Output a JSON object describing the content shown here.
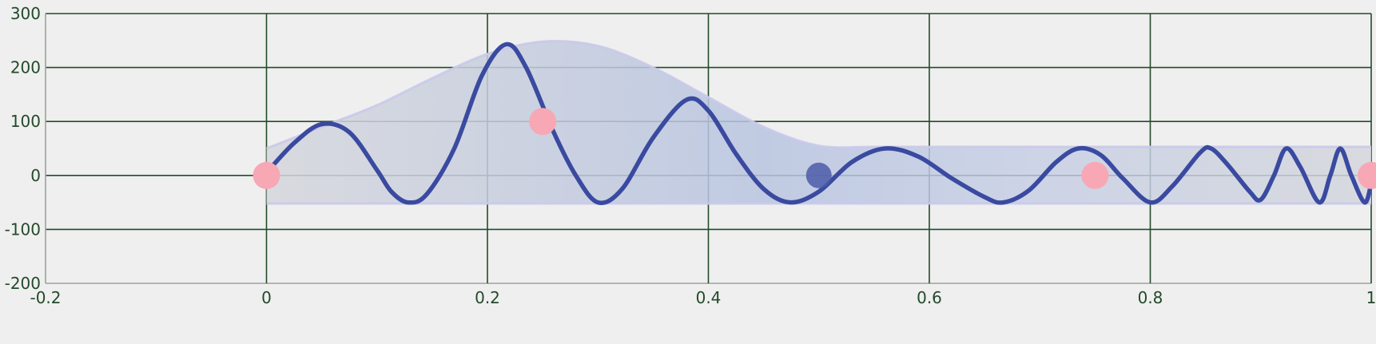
{
  "chart_data": {
    "type": "line",
    "title": "",
    "xlabel": "",
    "ylabel": "",
    "xlim": [
      -0.2,
      1.0
    ],
    "ylim": [
      -200,
      300
    ],
    "x_ticks": [
      {
        "value": -0.2,
        "label": "-0.2"
      },
      {
        "value": 0,
        "label": "0"
      },
      {
        "value": 0.2,
        "label": "0.2"
      },
      {
        "value": 0.4,
        "label": "0.4"
      },
      {
        "value": 0.6,
        "label": "0.6"
      },
      {
        "value": 0.8,
        "label": "0.8"
      },
      {
        "value": 1.0,
        "label": "1"
      }
    ],
    "y_ticks": [
      {
        "value": 300,
        "label": "300"
      },
      {
        "value": 200,
        "label": "200"
      },
      {
        "value": 100,
        "label": "100"
      },
      {
        "value": 0,
        "label": "0"
      },
      {
        "value": -100,
        "label": "-100"
      },
      {
        "value": -200,
        "label": "-200"
      }
    ],
    "grid": true,
    "colors": {
      "curve": "#3a4aa0",
      "band_fill": "#b8c4e0",
      "band_edge": "#c9c9ea",
      "point_pink": "#f7a8b4",
      "point_blue": "#4c5aa8",
      "grid": "#234a2a",
      "background": "#efefef"
    },
    "series": [
      {
        "points": [
          [
            0.0,
            5
          ],
          [
            0.025,
            60
          ],
          [
            0.05,
            95
          ],
          [
            0.075,
            80
          ],
          [
            0.1,
            10
          ],
          [
            0.113,
            -30
          ],
          [
            0.128,
            -50
          ],
          [
            0.145,
            -35
          ],
          [
            0.17,
            50
          ],
          [
            0.195,
            185
          ],
          [
            0.217,
            243
          ],
          [
            0.235,
            200
          ],
          [
            0.26,
            80
          ],
          [
            0.28,
            0
          ],
          [
            0.3,
            -50
          ],
          [
            0.322,
            -25
          ],
          [
            0.35,
            70
          ],
          [
            0.38,
            140
          ],
          [
            0.4,
            120
          ],
          [
            0.425,
            40
          ],
          [
            0.45,
            -25
          ],
          [
            0.474,
            -50
          ],
          [
            0.5,
            -30
          ],
          [
            0.53,
            25
          ],
          [
            0.56,
            50
          ],
          [
            0.59,
            35
          ],
          [
            0.62,
            -5
          ],
          [
            0.65,
            -40
          ],
          [
            0.667,
            -50
          ],
          [
            0.69,
            -28
          ],
          [
            0.715,
            25
          ],
          [
            0.735,
            50
          ],
          [
            0.755,
            38
          ],
          [
            0.775,
            -5
          ],
          [
            0.8,
            -50
          ],
          [
            0.82,
            -20
          ],
          [
            0.845,
            42
          ],
          [
            0.855,
            50
          ],
          [
            0.87,
            20
          ],
          [
            0.89,
            -30
          ],
          [
            0.9,
            -45
          ],
          [
            0.912,
            0
          ],
          [
            0.923,
            50
          ],
          [
            0.936,
            15
          ],
          [
            0.953,
            -50
          ],
          [
            0.963,
            0
          ],
          [
            0.972,
            50
          ],
          [
            0.982,
            0
          ],
          [
            0.994,
            -50
          ],
          [
            1.0,
            -15
          ]
        ]
      }
    ],
    "band": {
      "upper": [
        [
          0.0,
          50
        ],
        [
          0.05,
          90
        ],
        [
          0.1,
          130
        ],
        [
          0.15,
          180
        ],
        [
          0.2,
          225
        ],
        [
          0.25,
          248
        ],
        [
          0.3,
          240
        ],
        [
          0.35,
          200
        ],
        [
          0.4,
          145
        ],
        [
          0.45,
          90
        ],
        [
          0.5,
          55
        ],
        [
          0.55,
          53
        ],
        [
          0.6,
          53
        ],
        [
          0.7,
          53
        ],
        [
          0.8,
          53
        ],
        [
          0.9,
          53
        ],
        [
          1.0,
          53
        ]
      ],
      "lower": [
        [
          0.0,
          -52
        ],
        [
          0.2,
          -52
        ],
        [
          0.4,
          -52
        ],
        [
          0.6,
          -52
        ],
        [
          0.8,
          -52
        ],
        [
          1.0,
          -52
        ]
      ]
    },
    "markers": [
      {
        "x": 0.0,
        "y": 0,
        "color": "pink"
      },
      {
        "x": 0.25,
        "y": 100,
        "color": "pink"
      },
      {
        "x": 0.5,
        "y": 0,
        "color": "blue"
      },
      {
        "x": 0.75,
        "y": 0,
        "color": "pink"
      },
      {
        "x": 1.0,
        "y": 0,
        "color": "pink"
      }
    ]
  }
}
